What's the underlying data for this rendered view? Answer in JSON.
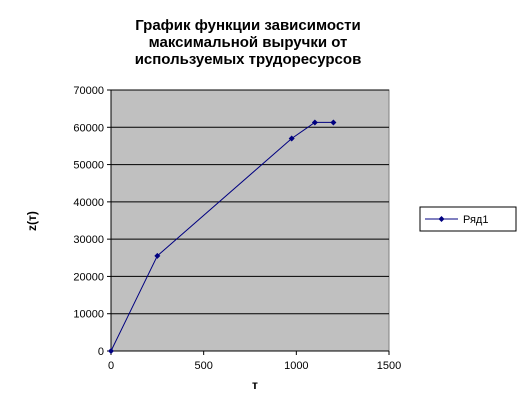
{
  "chart_data": {
    "type": "line",
    "title": [
      "График функции зависимости",
      "максимальной выручки от",
      "используемых трудоресурсов"
    ],
    "xlabel": "т",
    "ylabel": "z(т)",
    "xlim": [
      0,
      1500
    ],
    "ylim": [
      0,
      70000
    ],
    "xticks": [
      0,
      500,
      1000,
      1500
    ],
    "yticks": [
      0,
      10000,
      20000,
      30000,
      40000,
      50000,
      60000,
      70000
    ],
    "grid": "horizontal",
    "legend_position": "right",
    "plot_background": "#c0c0c0",
    "series": [
      {
        "name": "Ряд1",
        "color": "#000080",
        "marker": "diamond",
        "x": [
          0,
          250,
          975,
          1100,
          1200
        ],
        "y": [
          0,
          25500,
          57000,
          61300,
          61300
        ]
      }
    ]
  }
}
